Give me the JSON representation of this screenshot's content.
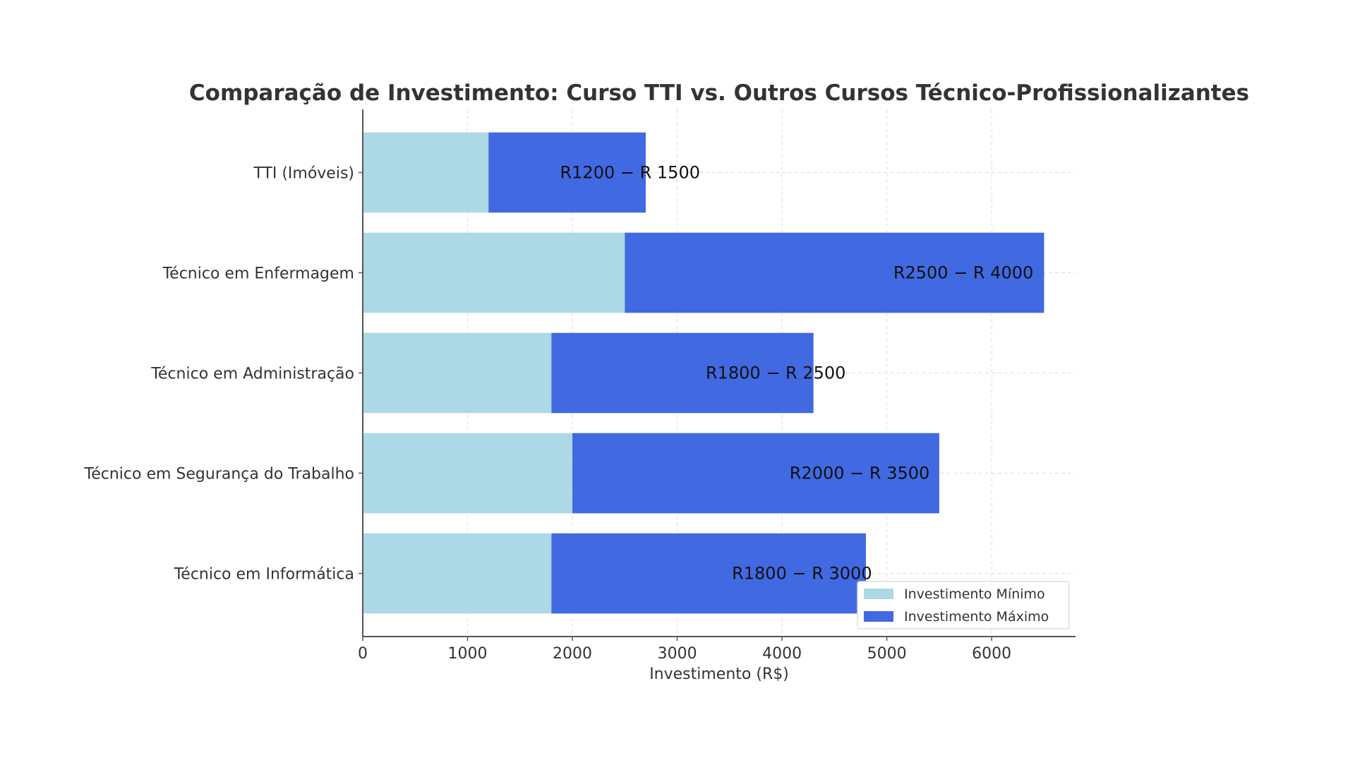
{
  "chart_data": {
    "type": "bar",
    "orientation": "horizontal",
    "stacked": true,
    "title": "Comparação de Investimento: Curso TTI vs. Outros Cursos Técnico-Profissionalizantes",
    "xlabel": "Investimento (R$)",
    "ylabel": "",
    "xlim": [
      0,
      6800
    ],
    "xticks": [
      0,
      1000,
      2000,
      3000,
      4000,
      5000,
      6000
    ],
    "grid": true,
    "legend_position": "bottom-right",
    "categories": [
      "Técnico em Informática",
      "Técnico em Segurança do Trabalho",
      "Técnico em Administração",
      "Técnico em Enfermagem",
      "TTI (Imóveis)"
    ],
    "series": [
      {
        "name": "Investimento Mínimo",
        "color": "#add8e6",
        "values": [
          1800,
          2000,
          1800,
          2500,
          1200
        ]
      },
      {
        "name": "Investimento Máximo",
        "color": "#4169e1",
        "values": [
          3000,
          3500,
          2500,
          4000,
          1500
        ]
      }
    ],
    "data_labels": [
      "R1800 − R 3000",
      "R2000 − R 3500",
      "R1800 − R 2500",
      "R2500 − R 4000",
      "R1200 − R 1500"
    ]
  }
}
